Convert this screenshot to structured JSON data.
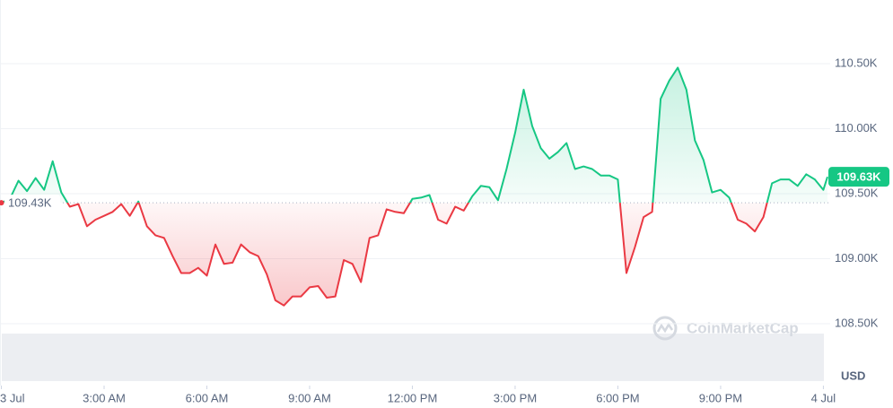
{
  "chart_data": {
    "type": "line",
    "x": [
      0,
      0.25,
      0.5,
      0.75,
      1,
      1.25,
      1.5,
      1.75,
      2,
      2.25,
      2.5,
      2.75,
      3,
      3.25,
      3.5,
      3.75,
      4,
      4.25,
      4.5,
      4.75,
      5,
      5.25,
      5.5,
      5.75,
      6,
      6.25,
      6.5,
      6.75,
      7,
      7.25,
      7.5,
      7.75,
      8,
      8.25,
      8.5,
      8.75,
      9,
      9.25,
      9.5,
      9.75,
      10,
      10.25,
      10.5,
      10.75,
      11,
      11.25,
      11.5,
      11.75,
      12,
      12.25,
      12.5,
      12.75,
      13,
      13.25,
      13.5,
      13.75,
      14,
      14.25,
      14.5,
      14.75,
      15,
      15.25,
      15.5,
      15.75,
      16,
      16.25,
      16.5,
      16.75,
      17,
      17.25,
      17.5,
      17.75,
      18,
      18.25,
      18.5,
      18.75,
      19,
      19.25,
      19.5,
      19.75,
      20,
      20.25,
      20.5,
      20.75,
      21,
      21.25,
      21.5,
      21.75,
      22,
      22.25,
      22.5,
      22.75,
      23,
      23.25,
      23.5,
      23.75,
      24,
      24.12
    ],
    "values": [
      109430,
      109460,
      109600,
      109520,
      109620,
      109530,
      109750,
      109510,
      109400,
      109420,
      109250,
      109300,
      109330,
      109360,
      109420,
      109330,
      109440,
      109250,
      109180,
      109160,
      109020,
      108890,
      108890,
      108930,
      108870,
      109110,
      108960,
      108970,
      109110,
      109050,
      109020,
      108880,
      108680,
      108640,
      108710,
      108710,
      108780,
      108790,
      108700,
      108710,
      108990,
      108960,
      108820,
      109160,
      109180,
      109380,
      109360,
      109350,
      109460,
      109470,
      109490,
      109300,
      109270,
      109400,
      109370,
      109480,
      109560,
      109550,
      109450,
      109690,
      109970,
      110300,
      110020,
      109850,
      109770,
      109820,
      109890,
      109690,
      109710,
      109690,
      109640,
      109640,
      109610,
      108890,
      109090,
      109320,
      109360,
      110230,
      110370,
      110470,
      110300,
      109910,
      109760,
      109510,
      109530,
      109470,
      109300,
      109270,
      109210,
      109320,
      109580,
      109610,
      109610,
      109560,
      109650,
      109610,
      109530,
      109630
    ],
    "up_color": "#16c784",
    "down_color": "#ea3943",
    "baseline": 109430,
    "baseline_label": "109.43K",
    "current_label": "109.63K",
    "currency": "USD",
    "watermark": "CoinMarketCap",
    "xlim": [
      0,
      24.12
    ],
    "ylim": [
      108400,
      110990
    ],
    "xticks": [
      {
        "value": 0,
        "label": "3 Jul"
      },
      {
        "value": 3,
        "label": "3:00 AM"
      },
      {
        "value": 6,
        "label": "6:00 AM"
      },
      {
        "value": 9,
        "label": "9:00 AM"
      },
      {
        "value": 12,
        "label": "12:00 PM"
      },
      {
        "value": 15,
        "label": "3:00 PM"
      },
      {
        "value": 18,
        "label": "6:00 PM"
      },
      {
        "value": 21,
        "label": "9:00 PM"
      },
      {
        "value": 24,
        "label": "4 Jul"
      }
    ],
    "yticks": [
      {
        "value": 108500,
        "label": "108.50K"
      },
      {
        "value": 109000,
        "label": "109.00K"
      },
      {
        "value": 109500,
        "label": "109.50K"
      },
      {
        "value": 110000,
        "label": "110.00K"
      },
      {
        "value": 110500,
        "label": "110.50K"
      }
    ],
    "grid": true
  }
}
